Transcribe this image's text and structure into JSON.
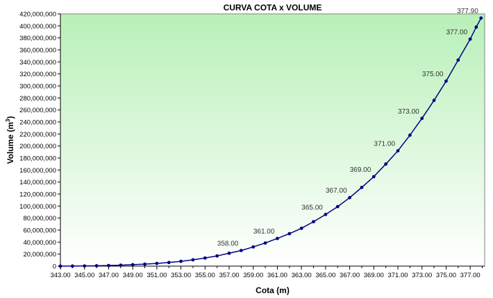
{
  "chart_data": {
    "type": "line",
    "title": "CURVA COTA x VOLUME",
    "xlabel": "Cota (m)",
    "ylabel": "Volume (m",
    "ylabel_sup": "3",
    "ylabel_end": ")",
    "xlim": [
      343,
      378.2
    ],
    "ylim": [
      0,
      420000000
    ],
    "x_ticks": [
      343,
      345,
      347,
      349,
      351,
      353,
      355,
      357,
      359,
      361,
      363,
      365,
      367,
      369,
      371,
      373,
      375,
      377
    ],
    "x_tick_labels": [
      "343.00",
      "345.00",
      "347.00",
      "349.00",
      "351.00",
      "353.00",
      "355.00",
      "357.00",
      "359.00",
      "361.00",
      "363.00",
      "365.00",
      "367.00",
      "369.00",
      "371.00",
      "373.00",
      "375.00",
      "377.00"
    ],
    "y_ticks": [
      0,
      20000000,
      40000000,
      60000000,
      80000000,
      100000000,
      120000000,
      140000000,
      160000000,
      180000000,
      200000000,
      220000000,
      240000000,
      260000000,
      280000000,
      300000000,
      320000000,
      340000000,
      360000000,
      380000000,
      400000000,
      420000000
    ],
    "y_tick_labels": [
      "0",
      "20,000,000",
      "40,000,000",
      "60,000,000",
      "80,000,000",
      "100,000,000",
      "120,000,000",
      "140,000,000",
      "160,000,000",
      "180,000,000",
      "200,000,000",
      "220,000,000",
      "240,000,000",
      "260,000,000",
      "280,000,000",
      "300,000,000",
      "320,000,000",
      "340,000,000",
      "360,000,000",
      "380,000,000",
      "400,000,000",
      "420,000,000"
    ],
    "grid": false,
    "series": [
      {
        "color": "#000080",
        "x": [
          343,
          344,
          345,
          346,
          347,
          348,
          349,
          350,
          351,
          352,
          353,
          354,
          355,
          356,
          357,
          358,
          359,
          360,
          361,
          362,
          363,
          364,
          365,
          366,
          367,
          368,
          369,
          370,
          371,
          372,
          373,
          374,
          375,
          376,
          377,
          377.5,
          377.9
        ],
        "y": [
          0,
          100000,
          300000,
          600000,
          1000000,
          1600000,
          2400000,
          3300000,
          4500000,
          6000000,
          8000000,
          10500000,
          13500000,
          17000000,
          21500000,
          26000000,
          32000000,
          38500000,
          46000000,
          54000000,
          63000000,
          74000000,
          86000000,
          99000000,
          114000000,
          131000000,
          149000000,
          170000000,
          192000000,
          218000000,
          246000000,
          276000000,
          308000000,
          343000000,
          378000000,
          398000000,
          413000000
        ]
      }
    ],
    "annotations": [
      {
        "x": 358,
        "y": 26000000,
        "text": "358.00"
      },
      {
        "x": 361,
        "y": 46000000,
        "text": "361.00"
      },
      {
        "x": 365,
        "y": 86000000,
        "text": "365.00"
      },
      {
        "x": 367,
        "y": 114000000,
        "text": "367.00"
      },
      {
        "x": 369,
        "y": 149000000,
        "text": "369.00"
      },
      {
        "x": 371,
        "y": 192000000,
        "text": "371.00"
      },
      {
        "x": 373,
        "y": 246000000,
        "text": "373.00"
      },
      {
        "x": 375,
        "y": 308000000,
        "text": "375.00"
      },
      {
        "x": 377,
        "y": 378000000,
        "text": "377.00"
      },
      {
        "x": 377.9,
        "y": 413000000,
        "text": "377.90"
      }
    ]
  }
}
